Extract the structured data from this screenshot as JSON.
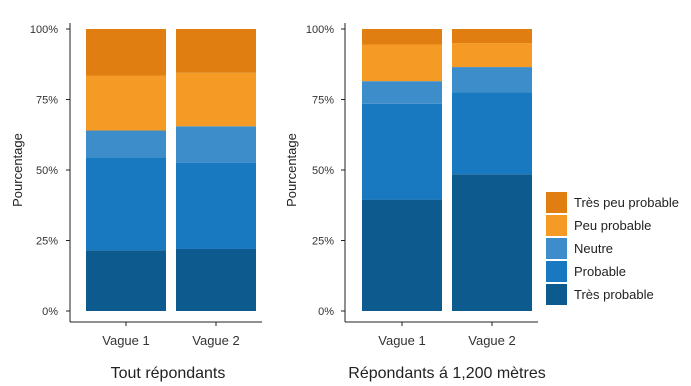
{
  "colors": {
    "tres_probable": "#0d5a8f",
    "probable": "#1878c0",
    "neutre": "#3d8dca",
    "peu_probable": "#f49a25",
    "tres_peu_probable": "#e07e12"
  },
  "legend": [
    {
      "name": "Très peu probable",
      "color": "#e07e12"
    },
    {
      "name": "Peu probable",
      "color": "#f49a25"
    },
    {
      "name": "Neutre",
      "color": "#3d8dca"
    },
    {
      "name": "Probable",
      "color": "#1878c0"
    },
    {
      "name": "Très probable",
      "color": "#0d5a8f"
    }
  ],
  "chart_data": [
    {
      "type": "bar",
      "stacked": true,
      "title": "Tout répondants",
      "ylabel": "Pourcentage",
      "ylim": [
        0,
        100
      ],
      "yticks": [
        "0%",
        "25%",
        "50%",
        "75%",
        "100%"
      ],
      "categories": [
        "Vague 1",
        "Vague 2"
      ],
      "series": [
        {
          "name": "Très probable",
          "values": [
            21.5,
            22
          ]
        },
        {
          "name": "Probable",
          "values": [
            33,
            30.5
          ]
        },
        {
          "name": "Neutre",
          "values": [
            9.5,
            13
          ]
        },
        {
          "name": "Peu probable",
          "values": [
            19.5,
            19
          ]
        },
        {
          "name": "Très peu probable",
          "values": [
            16.5,
            15.5
          ]
        }
      ]
    },
    {
      "type": "bar",
      "stacked": true,
      "title": "Répondants á 1,200 mètres",
      "ylabel": "Pourcentage",
      "ylim": [
        0,
        100
      ],
      "yticks": [
        "0%",
        "25%",
        "50%",
        "75%",
        "100%"
      ],
      "categories": [
        "Vague 1",
        "Vague 2"
      ],
      "series": [
        {
          "name": "Très probable",
          "values": [
            39.5,
            48.5
          ]
        },
        {
          "name": "Probable",
          "values": [
            34,
            29
          ]
        },
        {
          "name": "Neutre",
          "values": [
            8,
            9
          ]
        },
        {
          "name": "Peu probable",
          "values": [
            13,
            8.5
          ]
        },
        {
          "name": "Très peu probable",
          "values": [
            5.5,
            5
          ]
        }
      ]
    }
  ]
}
